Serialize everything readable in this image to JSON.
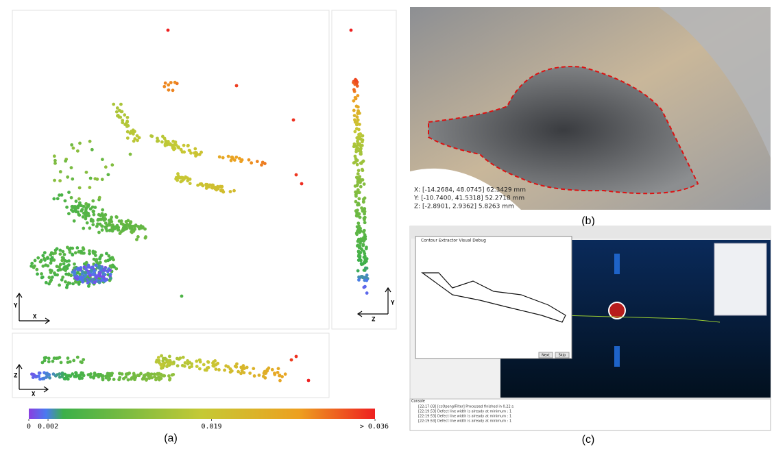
{
  "panel_a": {
    "label": "(a)",
    "views": {
      "top": {
        "vertical": "Y",
        "horizontal": "X"
      },
      "side": {
        "vertical": "Y",
        "horizontal": "Z"
      },
      "front": {
        "vertical": "Z",
        "horizontal": "X"
      }
    },
    "colorbar": {
      "lim": [
        0,
        0.036
      ],
      "ticks": [
        {
          "value": 0,
          "label": "0"
        },
        0.002,
        0.019,
        {
          "value": 0.036,
          "label": "> 0.036"
        }
      ]
    }
  },
  "panel_b": {
    "label": "(b)",
    "coordinates": [
      "X: [-14.2684, 48.0745] 62.3429 mm",
      "Y: [-10.7400, 41.5318] 52.2718 mm",
      "Z: [-2.8901, 2.9362] 5.8263 mm"
    ]
  },
  "panel_c": {
    "label": "(c)",
    "dialog_title": "Contour Extractor Visual Debug",
    "buttons": [
      "Next",
      "Skip"
    ],
    "console_title": "Console",
    "console_lines": [
      "[22:17:03] [ccOpenglFilter] Processed finished in 0.22 s.",
      "[22:19:53] Defect line width is already at minimum : 1",
      "[22:19:53] Defect line width is already at minimum : 1",
      "[22:19:53] Defect line width is already at minimum : 1"
    ]
  }
}
